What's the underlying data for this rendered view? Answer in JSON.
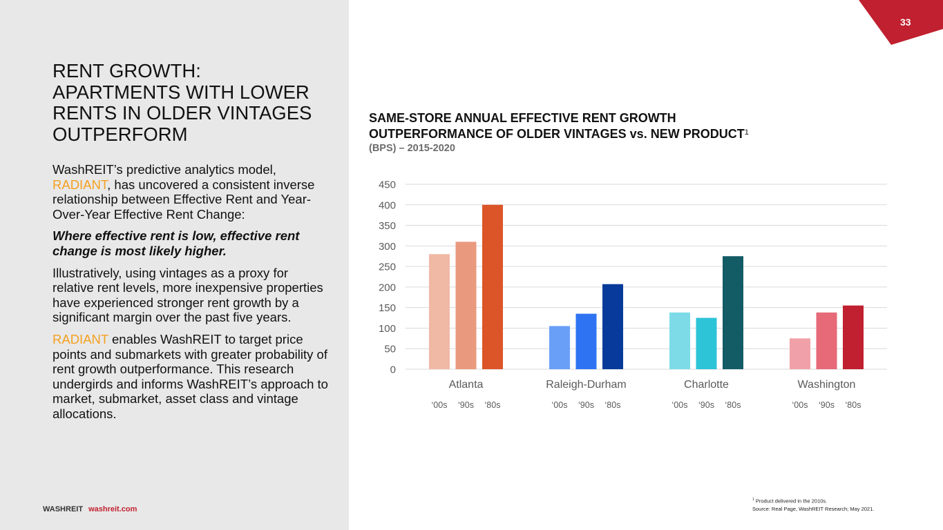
{
  "page_number": "33",
  "left": {
    "title": "RENT GROWTH: APARTMENTS WITH LOWER RENTS IN OLDER VINTAGES OUTPERFORM",
    "title_lines": [
      "RENT GROWTH:",
      "APARTMENTS WITH LOWER",
      "RENTS IN OLDER VINTAGES",
      "OUTPERFORM"
    ],
    "para1_pre": "WashREIT’s predictive analytics model, ",
    "para1_accent": "RADIANT",
    "para1_post": ", has uncovered a consistent inverse relationship between Effective Rent and Year-Over-Year Effective Rent Change:",
    "para2": "Where effective rent is low, effective rent change is most likely higher.",
    "para3": "Illustratively, using vintages as a proxy for relative rent levels, more inexpensive properties have experienced stronger rent growth by a significant margin over the past five years.",
    "para4_accent": "RADIANT",
    "para4_post": " enables WashREIT to target price points and submarkets with greater probability of rent growth outperformance. This research undergirds and informs WashREIT’s approach to market, submarket, asset class and vintage allocations."
  },
  "footer": {
    "brand": "WASHREIT",
    "url": "washreit.com"
  },
  "footnote": {
    "marker": "1",
    "line1": " Product delivered in the 2010s.",
    "line2": "Source: Real Page, WashREIT Research; May 2021."
  },
  "colors": {
    "brand_red": "#c0202f",
    "accent_orange": "#f5a020",
    "panel_bg": "#e8e8e8"
  },
  "chart_data": {
    "type": "bar",
    "title_line1": "SAME-STORE ANNUAL EFFECTIVE RENT GROWTH",
    "title_line2": "OUTPERFORMANCE OF OLDER VINTAGES vs. NEW PRODUCT",
    "title_superscript": "1",
    "subtitle": "(BPS) – 2015-2020",
    "xlabel": "",
    "ylabel": "",
    "ylim": [
      0,
      450
    ],
    "yticks": [
      0,
      50,
      100,
      150,
      200,
      250,
      300,
      350,
      400,
      450
    ],
    "grid": true,
    "legend": "none",
    "categories": [
      "Atlanta",
      "Raleigh-Durham",
      "Charlotte",
      "Washington"
    ],
    "sub_categories": [
      "‘00s",
      "‘90s",
      "‘80s"
    ],
    "series": [
      {
        "name": "‘00s",
        "values": [
          280,
          105,
          138,
          75
        ]
      },
      {
        "name": "‘90s",
        "values": [
          310,
          135,
          125,
          138
        ]
      },
      {
        "name": "‘80s",
        "values": [
          400,
          207,
          275,
          155
        ]
      }
    ],
    "bar_colors": [
      [
        "#f0b9a5",
        "#e99a7e",
        "#dc5529"
      ],
      [
        "#6a9ff8",
        "#2e74f2",
        "#073a9a"
      ],
      [
        "#7ddbe8",
        "#2ec4d8",
        "#135b65"
      ],
      [
        "#f0a0a8",
        "#e66a78",
        "#c0202f"
      ]
    ]
  }
}
